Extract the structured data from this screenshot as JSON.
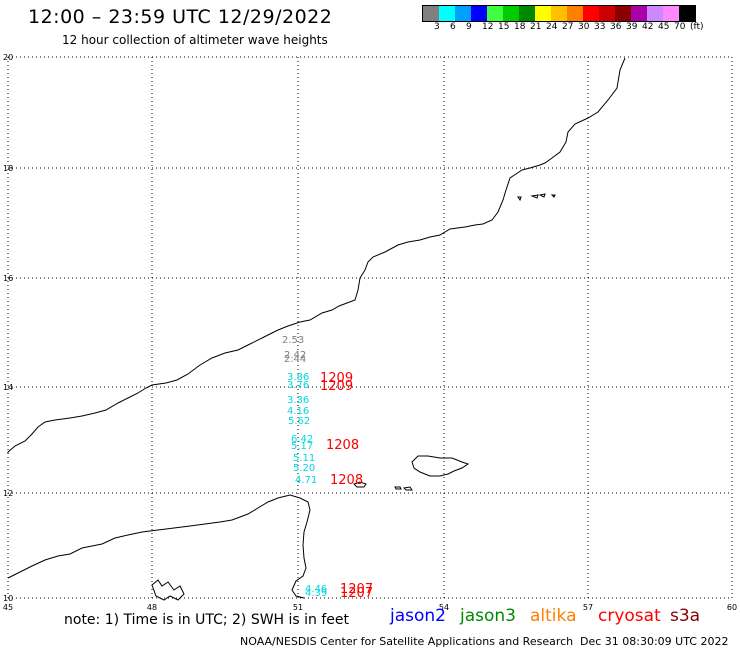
{
  "header": {
    "title": "12:00 – 23:59 UTC 12/29/2022",
    "subtitle": "12 hour collection of altimeter wave heights"
  },
  "legend": {
    "colors": [
      "#808080",
      "#00ffff",
      "#00a0ff",
      "#0000ff",
      "#40ff40",
      "#00cc00",
      "#008800",
      "#ffff00",
      "#ffc000",
      "#ff8000",
      "#ff0000",
      "#cc0000",
      "#880000",
      "#aa00aa",
      "#cc88ff",
      "#ff88ff",
      "#000000"
    ],
    "labels": [
      "3",
      "6",
      "9",
      "12",
      "15",
      "18",
      "21",
      "24",
      "27",
      "30",
      "33",
      "36",
      "39",
      "42",
      "45",
      "70",
      "(ft)"
    ]
  },
  "axes": {
    "lon_labels": [
      "45",
      "48",
      "51",
      "54",
      "57",
      "60"
    ],
    "lat_labels": [
      "20",
      "18",
      "16",
      "14",
      "12",
      "10"
    ]
  },
  "swh_labels": [
    {
      "text": "2.53",
      "color": "#808080"
    },
    {
      "text": "2.42",
      "color": "#808080"
    },
    {
      "text": "2.44",
      "color": "#808080"
    },
    {
      "text": "3.86",
      "color": "#00d8e0"
    },
    {
      "text": "3.76",
      "color": "#00d8e0"
    },
    {
      "text": "3.36",
      "color": "#00d8e0"
    },
    {
      "text": "4.16",
      "color": "#00d8e0"
    },
    {
      "text": "5.62",
      "color": "#00d8e0"
    },
    {
      "text": "6.42",
      "color": "#00d8e0"
    },
    {
      "text": "5.17",
      "color": "#00d8e0"
    },
    {
      "text": "5.11",
      "color": "#00d8e0"
    },
    {
      "text": "5.20",
      "color": "#00d8e0"
    },
    {
      "text": "4.71",
      "color": "#00d8e0"
    },
    {
      "text": "4.46",
      "color": "#00d8e0"
    },
    {
      "text": "4.39",
      "color": "#00d8e0"
    }
  ],
  "time_labels": [
    {
      "text": "1209",
      "color": "#ff0000"
    },
    {
      "text": "1209",
      "color": "#ff0000"
    },
    {
      "text": "1208",
      "color": "#ff0000"
    },
    {
      "text": "1208",
      "color": "#ff0000"
    },
    {
      "text": "1207",
      "color": "#ff0000"
    },
    {
      "text": "1207",
      "color": "#ff0000"
    }
  ],
  "footer": {
    "note": "note: 1) Time is in UTC; 2) SWH is in feet",
    "satellites": [
      {
        "name": "jason2",
        "color": "#0000ff"
      },
      {
        "name": "jason3",
        "color": "#008800"
      },
      {
        "name": "altika",
        "color": "#ff8000"
      },
      {
        "name": "cryosat",
        "color": "#ff0000"
      },
      {
        "name": "s3a",
        "color": "#880000"
      }
    ],
    "credit": "NOAA/NESDIS Center for Satellite Applications and Research",
    "timestamp": "Dec 31 08:30:09 UTC 2022"
  }
}
